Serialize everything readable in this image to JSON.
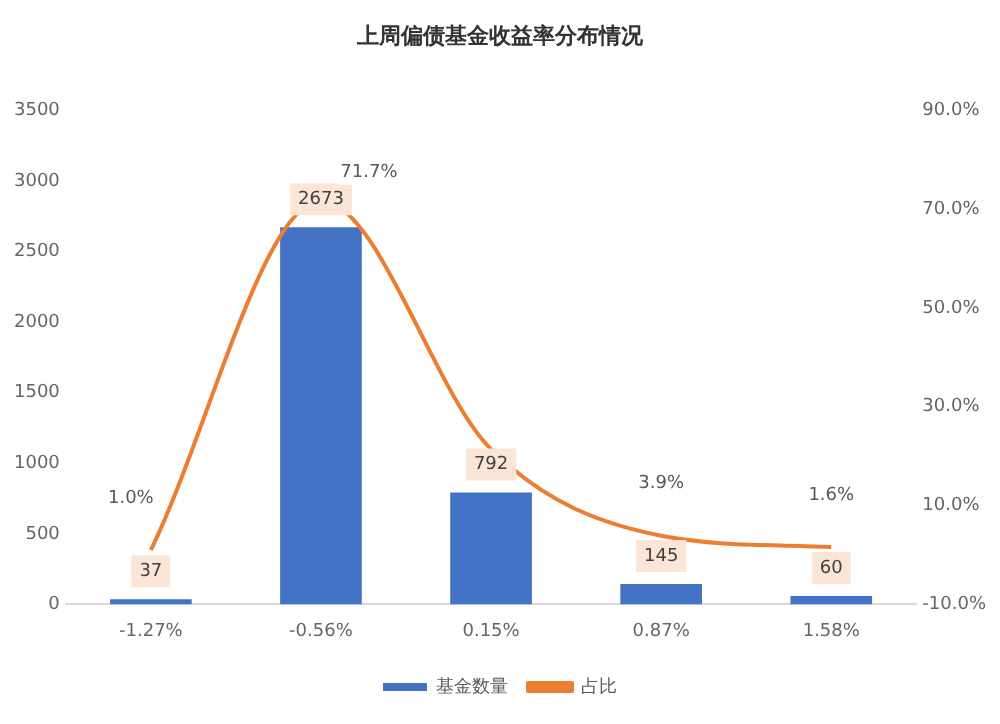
{
  "chart_data": {
    "type": "bar",
    "title": "上周偏债基金收益率分布情况",
    "categories": [
      "-1.27%",
      "-0.56%",
      "0.15%",
      "0.87%",
      "1.58%"
    ],
    "series": [
      {
        "name": "基金数量",
        "color": "#4472c4",
        "values": [
          37,
          2673,
          792,
          145,
          60
        ],
        "value_labels": [
          "37",
          "2673",
          "792",
          "145",
          "60"
        ]
      },
      {
        "name": "占比",
        "type": "line",
        "axis": "y2",
        "color": "#ed7d31",
        "values": [
          1.0,
          71.7,
          21.4,
          3.9,
          1.6
        ],
        "value_labels": [
          "1.0%",
          "71.7%",
          null,
          "3.9%",
          "1.6%"
        ]
      }
    ],
    "ylim": [
      0,
      3500
    ],
    "yticks": [
      0,
      500,
      1000,
      1500,
      2000,
      2500,
      3000,
      3500
    ],
    "y2lim": [
      -10,
      90
    ],
    "y2ticks": [
      {
        "value": -10,
        "label": "-10.0%"
      },
      {
        "value": 10,
        "label": "10.0%"
      },
      {
        "value": 30,
        "label": "30.0%"
      },
      {
        "value": 50,
        "label": "50.0%"
      },
      {
        "value": 70,
        "label": "70.0%"
      },
      {
        "value": 90,
        "label": "90.0%"
      }
    ],
    "grid": false,
    "legend": "bottom",
    "marker": "none"
  }
}
